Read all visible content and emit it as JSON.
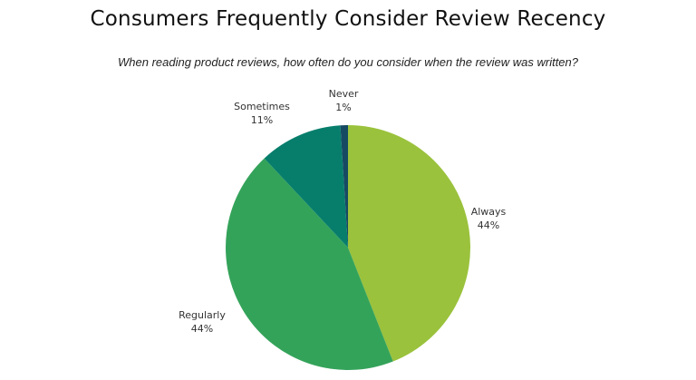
{
  "chart_data": {
    "type": "pie",
    "title": "Consumers Frequently Consider Review Recency",
    "subtitle": "When reading product reviews, how often do you consider when the review was written?",
    "slices": [
      {
        "label": "Always",
        "value": 44,
        "display": "44%",
        "color": "#9ac23c"
      },
      {
        "label": "Regularly",
        "value": 44,
        "display": "44%",
        "color": "#34a35a"
      },
      {
        "label": "Sometimes",
        "value": 11,
        "display": "11%",
        "color": "#077e6c"
      },
      {
        "label": "Never",
        "value": 1,
        "display": "1%",
        "color": "#164a63"
      }
    ],
    "start_angle_deg": 0,
    "direction": "clockwise",
    "legend": "none"
  }
}
